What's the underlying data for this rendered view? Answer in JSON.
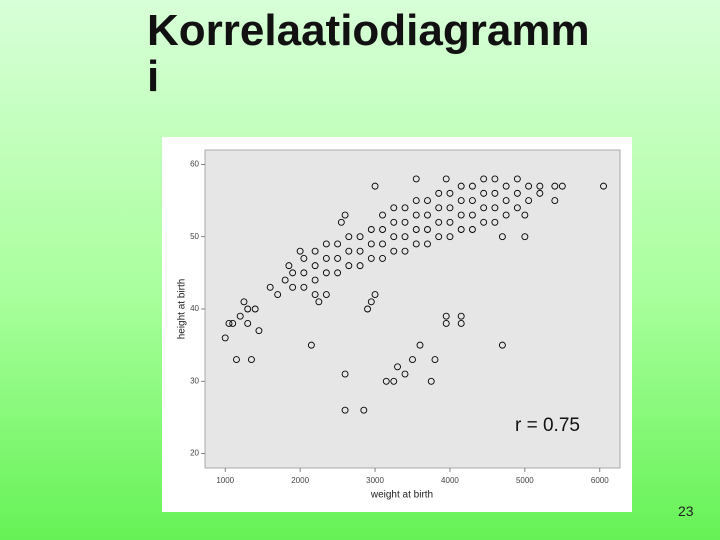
{
  "slide": {
    "title": "Korrelaatiodiagrammi",
    "page_number": "23"
  },
  "chart_data": {
    "type": "scatter",
    "x_label": "weight at birth",
    "y_label": "height at birth",
    "annotation": "r = 0.75",
    "color": "#000000",
    "xlim": [
      730,
      6270
    ],
    "ylim": [
      18,
      62
    ],
    "xticks": [
      1000,
      2000,
      3000,
      4000,
      5000,
      6000
    ],
    "yticks": [
      20,
      30,
      40,
      50,
      60
    ],
    "x": [
      1000,
      1050,
      1150,
      1350,
      1100,
      1200,
      1300,
      1450,
      1250,
      1400,
      2150,
      2600,
      2600,
      2850,
      3150,
      3250,
      3300,
      3400,
      3500,
      3600,
      3750,
      3800,
      3950,
      3950,
      4150,
      4150,
      4700,
      4700,
      6050,
      2900,
      2950,
      3000,
      1300,
      1600,
      1700,
      1800,
      2200,
      2250,
      2350,
      1900,
      1900,
      2050,
      2050,
      2050,
      2200,
      2200,
      2200,
      2350,
      2350,
      2350,
      2500,
      2500,
      2500,
      2650,
      2650,
      2650,
      2800,
      2800,
      2800,
      2950,
      2950,
      2950,
      3100,
      3100,
      3100,
      3100,
      3250,
      3250,
      3250,
      3250,
      3400,
      3400,
      3400,
      3400,
      3550,
      3550,
      3550,
      3550,
      3700,
      3700,
      3700,
      3700,
      3850,
      3850,
      3850,
      3850,
      4000,
      4000,
      4000,
      4000,
      4150,
      4150,
      4150,
      4150,
      4300,
      4300,
      4300,
      4300,
      4450,
      4450,
      4450,
      4450,
      4600,
      4600,
      4600,
      4600,
      4750,
      4750,
      4750,
      4900,
      4900,
      4900,
      5050,
      5050,
      5200,
      5200,
      5400,
      5400,
      5500,
      5000,
      5000,
      3000,
      3550,
      3950,
      2600,
      2550,
      2000,
      1850
    ],
    "values": [
      36,
      38,
      33,
      33,
      38,
      39,
      38,
      37,
      41,
      40,
      35,
      31,
      26,
      26,
      30,
      30,
      32,
      31,
      33,
      35,
      30,
      33,
      38,
      39,
      38,
      39,
      35,
      50,
      57,
      40,
      41,
      42,
      40,
      43,
      42,
      44,
      42,
      41,
      42,
      43,
      45,
      43,
      45,
      47,
      44,
      46,
      48,
      45,
      47,
      49,
      45,
      47,
      49,
      46,
      48,
      50,
      46,
      48,
      50,
      47,
      49,
      51,
      47,
      49,
      51,
      53,
      48,
      50,
      52,
      54,
      48,
      50,
      52,
      54,
      49,
      51,
      53,
      55,
      49,
      51,
      53,
      55,
      50,
      52,
      54,
      56,
      50,
      52,
      54,
      56,
      51,
      53,
      55,
      57,
      51,
      53,
      55,
      57,
      52,
      54,
      56,
      58,
      52,
      54,
      56,
      58,
      53,
      55,
      57,
      54,
      56,
      58,
      55,
      57,
      56,
      57,
      55,
      57,
      57,
      50,
      53,
      57,
      58,
      58,
      53,
      52,
      48,
      46
    ]
  }
}
